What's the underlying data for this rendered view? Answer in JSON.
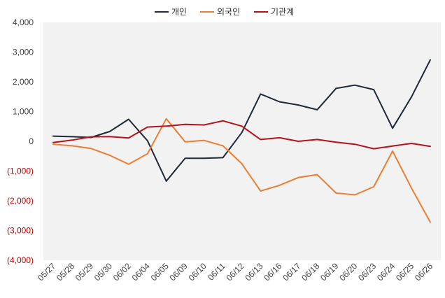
{
  "chart_data": {
    "type": "line",
    "categories": [
      "05/27",
      "05/28",
      "05/29",
      "05/30",
      "06/02",
      "06/04",
      "06/05",
      "06/09",
      "06/10",
      "06/11",
      "06/12",
      "06/13",
      "06/16",
      "06/17",
      "06/18",
      "06/19",
      "06/20",
      "06/23",
      "06/24",
      "06/25",
      "06/26"
    ],
    "series": [
      {
        "name": "개인",
        "color": "#1f2937",
        "values": [
          175,
          155,
          130,
          330,
          740,
          20,
          -1340,
          -570,
          -570,
          -550,
          290,
          1590,
          1330,
          1220,
          1060,
          1780,
          1890,
          1740,
          440,
          1490,
          2740
        ]
      },
      {
        "name": "외국인",
        "color": "#ed7d31",
        "values": [
          -100,
          -150,
          -240,
          -470,
          -770,
          -420,
          760,
          -20,
          30,
          -150,
          -750,
          -1670,
          -1480,
          -1220,
          -1120,
          -1740,
          -1800,
          -1530,
          -330,
          -1570,
          -2720
        ]
      },
      {
        "name": "기관계",
        "color": "#b5121b",
        "values": [
          -40,
          40,
          150,
          160,
          110,
          480,
          510,
          570,
          550,
          690,
          510,
          60,
          120,
          0,
          60,
          -30,
          -100,
          -250,
          -160,
          -70,
          -170
        ]
      }
    ],
    "ylim": [
      -4000,
      4000
    ],
    "yticks": [
      4000,
      3000,
      2000,
      1000,
      0,
      -1000,
      -2000,
      -3000,
      -4000
    ],
    "ytick_labels": [
      "4,000",
      "3,000",
      "2,000",
      "1,000",
      "0",
      "(1,000)",
      "(2,000)",
      "(3,000)",
      "(4,000)"
    ],
    "negative_label_color": "#c00000",
    "positive_label_color": "#404040",
    "legend_position": "top-center",
    "title": "",
    "xlabel": "",
    "ylabel": ""
  }
}
